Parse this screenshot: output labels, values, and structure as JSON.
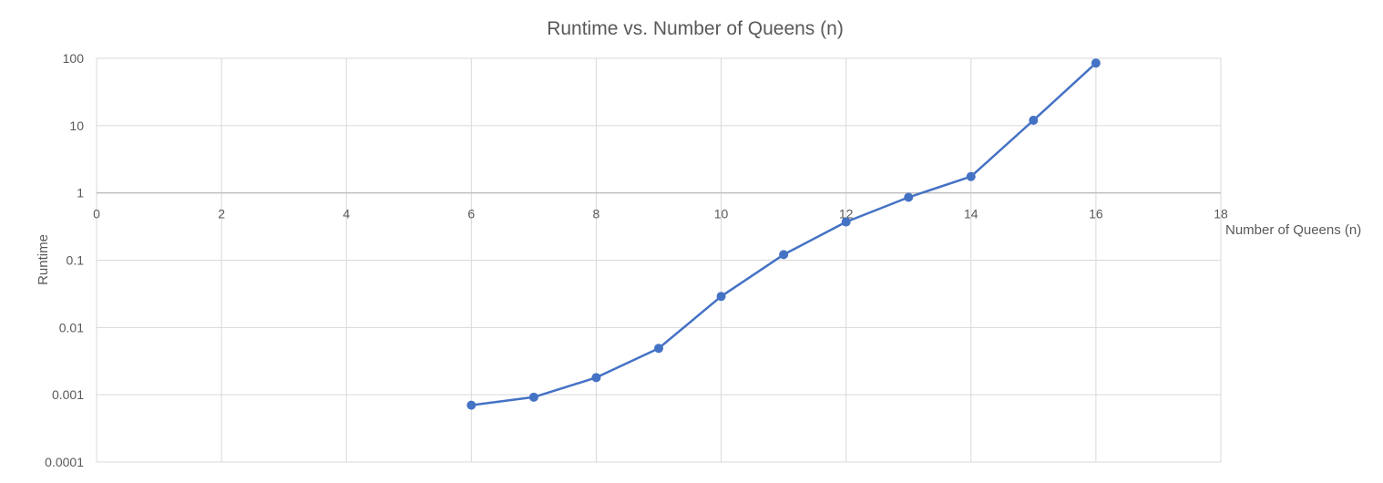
{
  "chart_data": {
    "type": "line",
    "title": "Runtime vs. Number of Queens (n)",
    "xlabel": "Number of Queens (n)",
    "ylabel": "Runtime",
    "xlim": [
      0,
      18
    ],
    "x_ticks": [
      "0",
      "2",
      "4",
      "6",
      "8",
      "10",
      "12",
      "14",
      "16",
      "18"
    ],
    "ylim": [
      0.0001,
      100
    ],
    "y_scale": "log",
    "y_ticks": [
      "0.0001",
      "0.001",
      "0.01",
      "0.1",
      "1",
      "10",
      "100"
    ],
    "grid": true,
    "x_axis_crosses_at_y": 1,
    "series": [
      {
        "x": [
          6,
          7,
          8,
          9,
          10,
          11,
          12,
          13,
          14,
          15,
          16
        ],
        "values": [
          0.0007,
          0.00092,
          0.0018,
          0.0049,
          0.029,
          0.121,
          0.37,
          0.86,
          1.75,
          12,
          85
        ],
        "color": "#4472C4",
        "marker": "circle"
      }
    ]
  }
}
